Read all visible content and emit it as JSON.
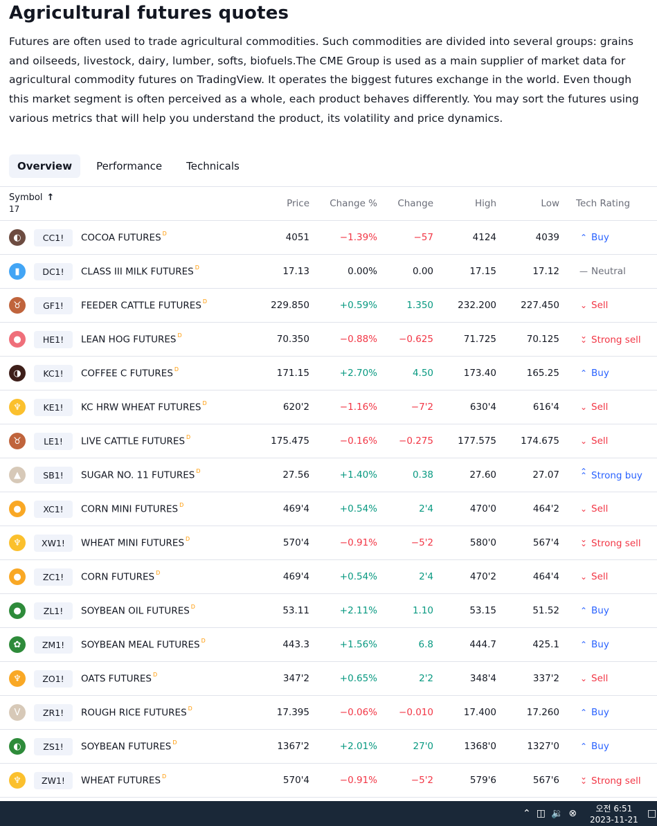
{
  "page": {
    "title": "Agricultural futures quotes",
    "description": "Futures are often used to trade agricultural commodities. Such commodities are divided into several groups: grains and oilseeds, livestock, dairy, lumber, softs, biofuels.The CME Group is used as a main supplier of market data for agricultural commodity futures on TradingView. It operates the biggest futures exchange in the world. Even though this market segment is often perceived as a whole, each product behaves differently. You may sort the futures using various metrics that will help you understand the product, its volatility and price dynamics."
  },
  "tabs": [
    {
      "label": "Overview",
      "active": true
    },
    {
      "label": "Performance",
      "active": false
    },
    {
      "label": "Technicals",
      "active": false
    }
  ],
  "table": {
    "headers": {
      "symbol": "Symbol",
      "count": "17",
      "price": "Price",
      "change_pct": "Change %",
      "change": "Change",
      "high": "High",
      "low": "Low",
      "tech_rating": "Tech Rating"
    },
    "delayed_mark": "D",
    "rows": [
      {
        "ticker": "CC1!",
        "name": "COCOA FUTURES",
        "price": "4051",
        "change_pct": "−1.39%",
        "change": "−57",
        "high": "4124",
        "low": "4039",
        "rating": "Buy",
        "dir": "neg",
        "logo_color": "#6d4c41",
        "logo_icon": "cocoa-bean-icon"
      },
      {
        "ticker": "DC1!",
        "name": "CLASS III MILK FUTURES",
        "price": "17.13",
        "change_pct": "0.00%",
        "change": "0.00",
        "high": "17.15",
        "low": "17.12",
        "rating": "Neutral",
        "dir": "neu",
        "logo_color": "#42a5f5",
        "logo_icon": "milk-bottle-icon"
      },
      {
        "ticker": "GF1!",
        "name": "FEEDER CATTLE FUTURES",
        "price": "229.850",
        "change_pct": "+0.59%",
        "change": "1.350",
        "high": "232.200",
        "low": "227.450",
        "rating": "Sell",
        "dir": "pos",
        "logo_color": "#c0643c",
        "logo_icon": "cattle-icon"
      },
      {
        "ticker": "HE1!",
        "name": "LEAN HOG FUTURES",
        "price": "70.350",
        "change_pct": "−0.88%",
        "change": "−0.625",
        "high": "71.725",
        "low": "70.125",
        "rating": "Strong sell",
        "dir": "neg",
        "logo_color": "#ef6f7a",
        "logo_icon": "hog-icon"
      },
      {
        "ticker": "KC1!",
        "name": "COFFEE C FUTURES",
        "price": "171.15",
        "change_pct": "+2.70%",
        "change": "4.50",
        "high": "173.40",
        "low": "165.25",
        "rating": "Buy",
        "dir": "pos",
        "logo_color": "#3e1f1a",
        "logo_icon": "coffee-bean-icon"
      },
      {
        "ticker": "KE1!",
        "name": "KC HRW WHEAT FUTURES",
        "price": "620'2",
        "change_pct": "−1.16%",
        "change": "−7'2",
        "high": "630'4",
        "low": "616'4",
        "rating": "Sell",
        "dir": "neg",
        "logo_color": "#fbc02d",
        "logo_icon": "wheat-icon"
      },
      {
        "ticker": "LE1!",
        "name": "LIVE CATTLE FUTURES",
        "price": "175.475",
        "change_pct": "−0.16%",
        "change": "−0.275",
        "high": "177.575",
        "low": "174.675",
        "rating": "Sell",
        "dir": "neg",
        "logo_color": "#c0643c",
        "logo_icon": "cattle-icon"
      },
      {
        "ticker": "SB1!",
        "name": "SUGAR NO. 11 FUTURES",
        "price": "27.56",
        "change_pct": "+1.40%",
        "change": "0.38",
        "high": "27.60",
        "low": "27.07",
        "rating": "Strong buy",
        "dir": "pos",
        "logo_color": "#d7c9b8",
        "logo_icon": "sugar-icon"
      },
      {
        "ticker": "XC1!",
        "name": "CORN MINI FUTURES",
        "price": "469'4",
        "change_pct": "+0.54%",
        "change": "2'4",
        "high": "470'0",
        "low": "464'2",
        "rating": "Sell",
        "dir": "pos",
        "logo_color": "#f9a825",
        "logo_icon": "corn-icon"
      },
      {
        "ticker": "XW1!",
        "name": "WHEAT MINI FUTURES",
        "price": "570'4",
        "change_pct": "−0.91%",
        "change": "−5'2",
        "high": "580'0",
        "low": "567'4",
        "rating": "Strong sell",
        "dir": "neg",
        "logo_color": "#fbc02d",
        "logo_icon": "wheat-icon"
      },
      {
        "ticker": "ZC1!",
        "name": "CORN FUTURES",
        "price": "469'4",
        "change_pct": "+0.54%",
        "change": "2'4",
        "high": "470'2",
        "low": "464'4",
        "rating": "Sell",
        "dir": "pos",
        "logo_color": "#f9a825",
        "logo_icon": "corn-icon"
      },
      {
        "ticker": "ZL1!",
        "name": "SOYBEAN OIL FUTURES",
        "price": "53.11",
        "change_pct": "+2.11%",
        "change": "1.10",
        "high": "53.15",
        "low": "51.52",
        "rating": "Buy",
        "dir": "pos",
        "logo_color": "#2e8b3a",
        "logo_icon": "oil-drop-icon"
      },
      {
        "ticker": "ZM1!",
        "name": "SOYBEAN MEAL FUTURES",
        "price": "443.3",
        "change_pct": "+1.56%",
        "change": "6.8",
        "high": "444.7",
        "low": "425.1",
        "rating": "Buy",
        "dir": "pos",
        "logo_color": "#2e8b3a",
        "logo_icon": "soy-meal-icon"
      },
      {
        "ticker": "ZO1!",
        "name": "OATS FUTURES",
        "price": "347'2",
        "change_pct": "+0.65%",
        "change": "2'2",
        "high": "348'4",
        "low": "337'2",
        "rating": "Sell",
        "dir": "pos",
        "logo_color": "#f9a825",
        "logo_icon": "oats-icon"
      },
      {
        "ticker": "ZR1!",
        "name": "ROUGH RICE FUTURES",
        "price": "17.395",
        "change_pct": "−0.06%",
        "change": "−0.010",
        "high": "17.400",
        "low": "17.260",
        "rating": "Buy",
        "dir": "neg",
        "logo_color": "#d7c9b8",
        "logo_icon": "rice-icon"
      },
      {
        "ticker": "ZS1!",
        "name": "SOYBEAN FUTURES",
        "price": "1367'2",
        "change_pct": "+2.01%",
        "change": "27'0",
        "high": "1368'0",
        "low": "1327'0",
        "rating": "Buy",
        "dir": "pos",
        "logo_color": "#2e8b3a",
        "logo_icon": "soybean-icon"
      },
      {
        "ticker": "ZW1!",
        "name": "WHEAT FUTURES",
        "price": "570'4",
        "change_pct": "−0.91%",
        "change": "−5'2",
        "high": "579'6",
        "low": "567'6",
        "rating": "Strong sell",
        "dir": "neg",
        "logo_color": "#fbc02d",
        "logo_icon": "wheat-icon"
      }
    ]
  },
  "taskbar": {
    "time": "오전 6:51",
    "date": "2023-11-21"
  }
}
